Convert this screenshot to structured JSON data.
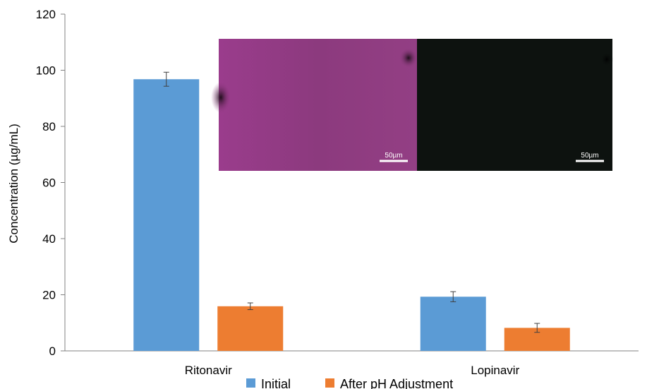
{
  "chart_data": {
    "type": "bar",
    "categories": [
      "Ritonavir",
      "Lopinavir"
    ],
    "series": [
      {
        "name": "Initial",
        "color": "#5B9BD5",
        "values": [
          96.8,
          19.3
        ],
        "errors": [
          2.5,
          1.8
        ]
      },
      {
        "name": "After pH Adjustment",
        "color": "#ED7D31",
        "values": [
          15.9,
          8.2
        ],
        "errors": [
          1.2,
          1.6
        ]
      }
    ],
    "title": "",
    "xlabel": "",
    "ylabel": "Concentration (µg/mL)",
    "ylim": [
      0,
      120
    ],
    "yticks": [
      0,
      20,
      40,
      60,
      80,
      100,
      120
    ],
    "grid": false,
    "legend": "bottom"
  },
  "inset": {
    "panels": [
      {
        "scale_bar_label": "50µm",
        "color": "#903a80"
      },
      {
        "scale_bar_label": "50µm",
        "color": "#0d120f"
      }
    ]
  }
}
